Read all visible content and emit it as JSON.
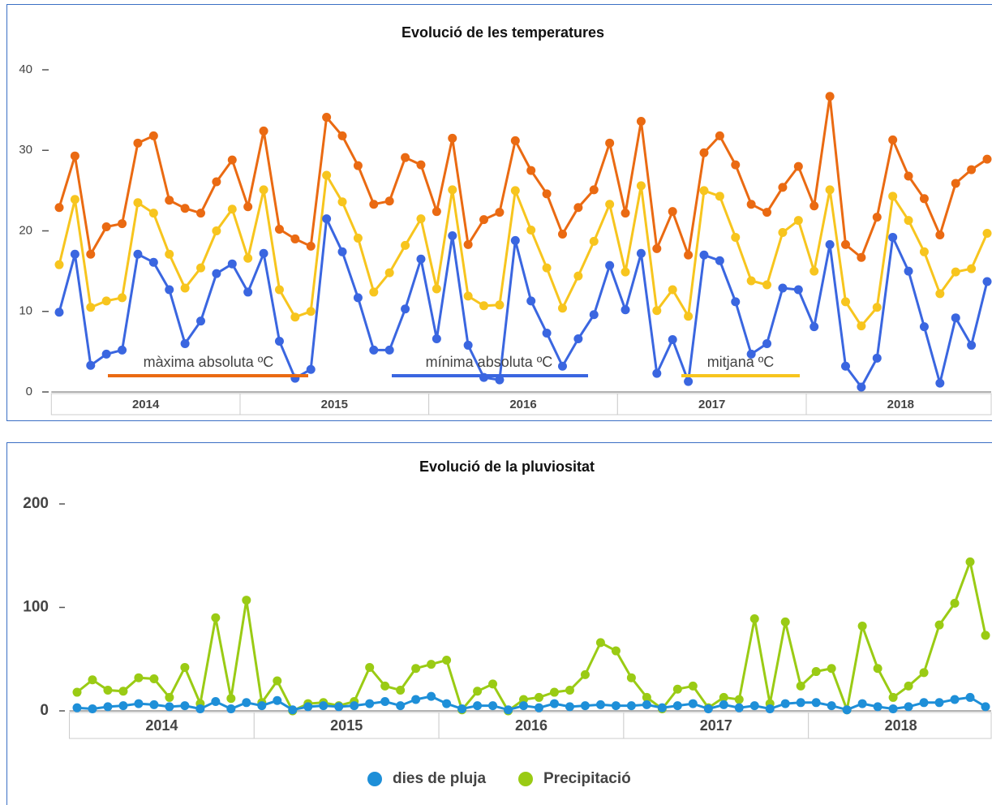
{
  "charts": [
    {
      "type": "line",
      "title": "Evolució de les temperatures",
      "years": [
        "2014",
        "2015",
        "2016",
        "2017",
        "2018"
      ],
      "ylim": [
        0,
        40
      ],
      "yticks": [
        0,
        10,
        20,
        30,
        40
      ],
      "legend_style": "underline",
      "series": [
        {
          "name": "màxima absoluta ºC",
          "color": "#ea6a12",
          "values": [
            22.9,
            29.3,
            17.1,
            20.5,
            20.9,
            30.9,
            31.8,
            23.8,
            22.8,
            22.2,
            26.1,
            28.8,
            23.0,
            32.4,
            20.2,
            19.0,
            18.1,
            34.1,
            31.8,
            28.1,
            23.3,
            23.7,
            29.1,
            28.2,
            22.4,
            31.5,
            18.3,
            21.4,
            22.3,
            31.2,
            27.5,
            24.6,
            19.6,
            22.9,
            25.1,
            30.9,
            22.2,
            33.6,
            17.8,
            22.4,
            17.0,
            29.7,
            31.8,
            28.2,
            23.3,
            22.3,
            25.4,
            28.0,
            23.1,
            36.7,
            18.3,
            16.7,
            21.7,
            31.3,
            26.8,
            24.0,
            19.5,
            25.9,
            27.6,
            28.9
          ]
        },
        {
          "name": "mínima absoluta ºC",
          "color": "#3a66e0",
          "values": [
            9.9,
            17.1,
            3.3,
            4.7,
            5.2,
            17.1,
            16.1,
            12.7,
            6.0,
            8.8,
            14.7,
            15.9,
            12.4,
            17.2,
            6.3,
            1.7,
            2.8,
            21.5,
            17.4,
            11.7,
            5.2,
            5.2,
            10.3,
            16.5,
            6.6,
            19.4,
            5.8,
            1.8,
            1.5,
            18.8,
            11.3,
            7.3,
            3.2,
            6.6,
            9.6,
            15.7,
            10.2,
            17.2,
            2.3,
            6.5,
            1.3,
            17.0,
            16.3,
            11.2,
            4.7,
            6.0,
            12.9,
            12.7,
            8.1,
            18.3,
            3.2,
            0.6,
            4.2,
            19.2,
            15.0,
            8.1,
            1.1,
            9.2,
            5.8,
            13.7
          ]
        },
        {
          "name": "mitjana ºC",
          "color": "#f7c51e",
          "values": [
            15.8,
            23.9,
            10.5,
            11.3,
            11.7,
            23.5,
            22.2,
            17.1,
            12.9,
            15.4,
            20.0,
            22.7,
            16.6,
            25.1,
            12.7,
            9.3,
            10.0,
            26.9,
            23.6,
            19.1,
            12.4,
            14.8,
            18.2,
            21.5,
            12.8,
            25.1,
            11.9,
            10.7,
            10.8,
            25.0,
            20.1,
            15.4,
            10.4,
            14.4,
            18.7,
            23.3,
            14.9,
            25.6,
            10.1,
            12.7,
            9.4,
            25.0,
            24.3,
            19.2,
            13.8,
            13.3,
            19.8,
            21.3,
            15.0,
            25.1,
            11.2,
            8.2,
            10.5,
            24.3,
            21.3,
            17.4,
            12.2,
            14.9,
            15.3,
            19.7
          ]
        }
      ]
    },
    {
      "type": "line",
      "title": "Evolució de la pluviositat",
      "years": [
        "2014",
        "2015",
        "2016",
        "2017",
        "2018"
      ],
      "ylim": [
        0,
        200
      ],
      "yticks": [
        0,
        100,
        200
      ],
      "legend_style": "marker",
      "series": [
        {
          "name": "dies de pluja",
          "color": "#1e8fd8",
          "values": [
            3,
            2,
            4,
            5,
            7,
            6,
            4,
            5,
            2,
            9,
            2,
            8,
            5,
            10,
            1,
            4,
            5,
            4,
            5,
            7,
            9,
            5,
            11,
            14,
            7,
            2,
            5,
            5,
            1,
            5,
            3,
            7,
            4,
            5,
            6,
            5,
            5,
            6,
            3,
            5,
            7,
            2,
            6,
            3,
            5,
            2,
            7,
            8,
            8,
            5,
            1,
            7,
            4,
            2,
            4,
            8,
            8,
            11,
            13,
            4
          ]
        },
        {
          "name": "Precipitació",
          "color": "#9acb14",
          "values": [
            18,
            30,
            20,
            19,
            32,
            31,
            13,
            42,
            7,
            90,
            12,
            107,
            8,
            29,
            0,
            7,
            8,
            5,
            9,
            42,
            24,
            20,
            41,
            45,
            49,
            1,
            19,
            26,
            0,
            11,
            13,
            18,
            20,
            35,
            66,
            58,
            32,
            13,
            2,
            21,
            24,
            3,
            13,
            11,
            89,
            7,
            86,
            24,
            38,
            41,
            1,
            82,
            41,
            13,
            24,
            37,
            83,
            104,
            144,
            73
          ]
        }
      ]
    }
  ]
}
